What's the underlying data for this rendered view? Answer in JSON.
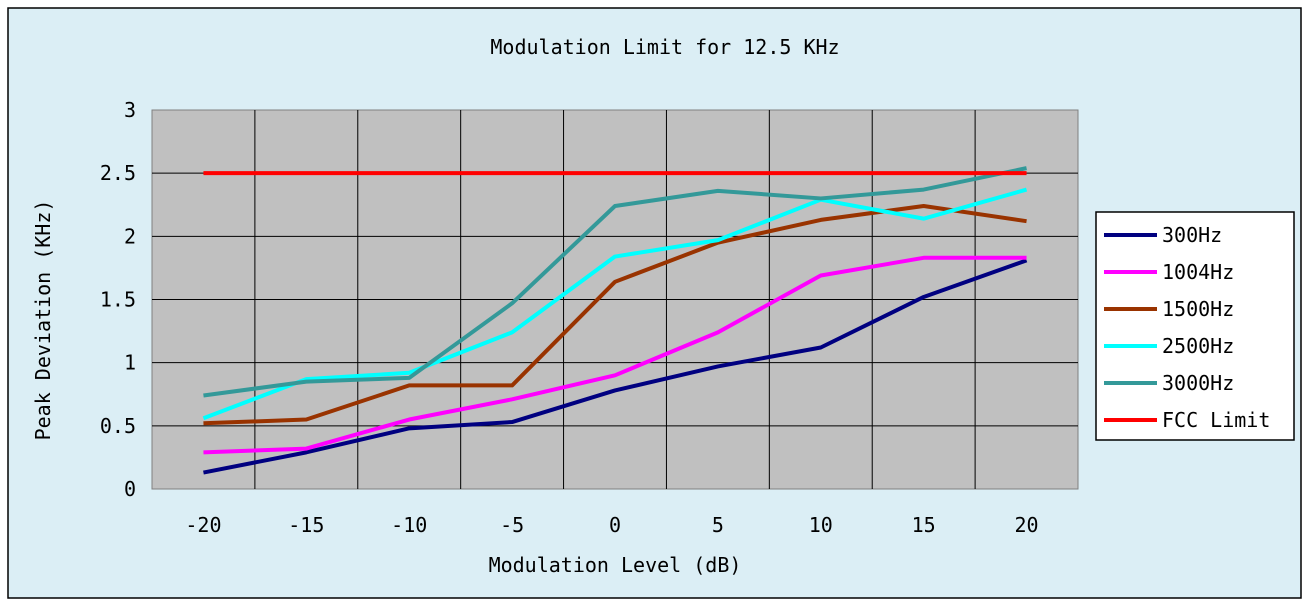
{
  "chart_data": {
    "type": "line",
    "title": "Modulation Limit for 12.5 KHz",
    "xlabel": "Modulation Level (dB)",
    "ylabel": "Peak Deviation (KHz)",
    "x": [
      -20,
      -15,
      -10,
      -5,
      0,
      5,
      10,
      15,
      20
    ],
    "x_tick_labels": [
      "-20",
      "-15",
      "-10",
      "-5",
      "0",
      "5",
      "10",
      "15",
      "20"
    ],
    "y_tick_labels": [
      "0",
      "0.5",
      "1",
      "1.5",
      "2",
      "2.5",
      "3"
    ],
    "ylim": [
      0,
      3
    ],
    "grid": true,
    "legend_position": "right",
    "colors": {
      "chart_background": "#dbeef5",
      "plot_background": "#c0c0c0",
      "grid": "#000000"
    },
    "series": [
      {
        "name": "300Hz",
        "color": "#000080",
        "values": [
          0.13,
          0.29,
          0.48,
          0.53,
          0.78,
          0.97,
          1.12,
          1.52,
          1.81
        ]
      },
      {
        "name": "1004Hz",
        "color": "#ff00ff",
        "values": [
          0.29,
          0.32,
          0.55,
          0.71,
          0.9,
          1.24,
          1.69,
          1.83,
          1.83
        ]
      },
      {
        "name": "1500Hz",
        "color": "#993300",
        "values": [
          0.52,
          0.55,
          0.82,
          0.82,
          1.64,
          1.95,
          2.13,
          2.24,
          2.12
        ]
      },
      {
        "name": "2500Hz",
        "color": "#00ffff",
        "values": [
          0.56,
          0.87,
          0.92,
          1.24,
          1.84,
          1.97,
          2.29,
          2.14,
          2.37
        ]
      },
      {
        "name": "3000Hz",
        "color": "#339999",
        "values": [
          0.74,
          0.85,
          0.88,
          1.47,
          2.24,
          2.36,
          2.3,
          2.37,
          2.54
        ]
      },
      {
        "name": "FCC Limit",
        "color": "#ff0000",
        "values": [
          2.5,
          2.5,
          2.5,
          2.5,
          2.5,
          2.5,
          2.5,
          2.5,
          2.5
        ]
      }
    ]
  }
}
